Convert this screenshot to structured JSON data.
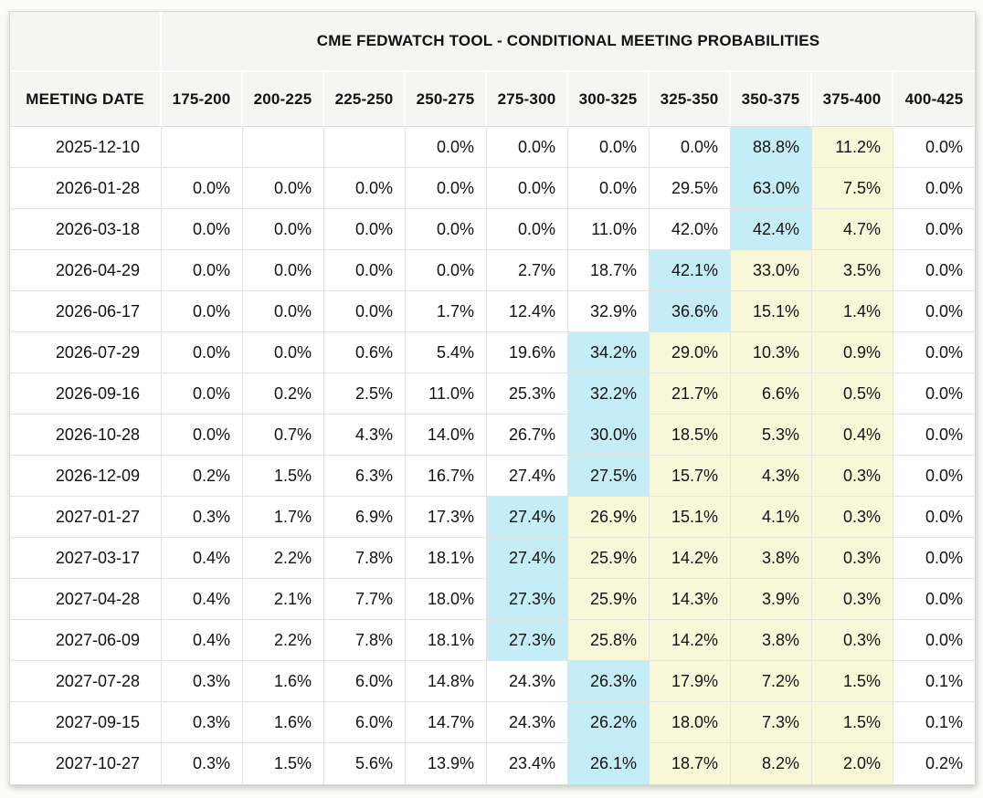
{
  "page": {
    "background": "#fbfbf7"
  },
  "table": {
    "title": "CME FEDWATCH TOOL - CONDITIONAL MEETING PROBABILITIES",
    "date_column_header": "MEETING DATE",
    "rate_bin_headers": [
      "175-200",
      "200-225",
      "225-250",
      "250-275",
      "275-300",
      "300-325",
      "325-350",
      "350-375",
      "375-400",
      "400-425"
    ],
    "highlight_colors": {
      "cyan": "#c5edf8",
      "yellow": "#f8f8d9"
    },
    "rows": [
      {
        "meeting_date": "2025-12-10",
        "values": [
          "",
          "",
          "",
          "0.0%",
          "0.0%",
          "0.0%",
          "0.0%",
          "88.8%",
          "11.2%",
          "0.0%"
        ],
        "highlights": [
          "",
          "",
          "",
          "",
          "",
          "",
          "",
          "cyan",
          "yellow",
          ""
        ]
      },
      {
        "meeting_date": "2026-01-28",
        "values": [
          "0.0%",
          "0.0%",
          "0.0%",
          "0.0%",
          "0.0%",
          "0.0%",
          "29.5%",
          "63.0%",
          "7.5%",
          "0.0%"
        ],
        "highlights": [
          "",
          "",
          "",
          "",
          "",
          "",
          "",
          "cyan",
          "yellow",
          ""
        ]
      },
      {
        "meeting_date": "2026-03-18",
        "values": [
          "0.0%",
          "0.0%",
          "0.0%",
          "0.0%",
          "0.0%",
          "11.0%",
          "42.0%",
          "42.4%",
          "4.7%",
          "0.0%"
        ],
        "highlights": [
          "",
          "",
          "",
          "",
          "",
          "",
          "",
          "cyan",
          "yellow",
          ""
        ]
      },
      {
        "meeting_date": "2026-04-29",
        "values": [
          "0.0%",
          "0.0%",
          "0.0%",
          "0.0%",
          "2.7%",
          "18.7%",
          "42.1%",
          "33.0%",
          "3.5%",
          "0.0%"
        ],
        "highlights": [
          "",
          "",
          "",
          "",
          "",
          "",
          "cyan",
          "yellow",
          "yellow",
          ""
        ]
      },
      {
        "meeting_date": "2026-06-17",
        "values": [
          "0.0%",
          "0.0%",
          "0.0%",
          "1.7%",
          "12.4%",
          "32.9%",
          "36.6%",
          "15.1%",
          "1.4%",
          "0.0%"
        ],
        "highlights": [
          "",
          "",
          "",
          "",
          "",
          "",
          "cyan",
          "yellow",
          "yellow",
          ""
        ]
      },
      {
        "meeting_date": "2026-07-29",
        "values": [
          "0.0%",
          "0.0%",
          "0.6%",
          "5.4%",
          "19.6%",
          "34.2%",
          "29.0%",
          "10.3%",
          "0.9%",
          "0.0%"
        ],
        "highlights": [
          "",
          "",
          "",
          "",
          "",
          "cyan",
          "yellow",
          "yellow",
          "yellow",
          ""
        ]
      },
      {
        "meeting_date": "2026-09-16",
        "values": [
          "0.0%",
          "0.2%",
          "2.5%",
          "11.0%",
          "25.3%",
          "32.2%",
          "21.7%",
          "6.6%",
          "0.5%",
          "0.0%"
        ],
        "highlights": [
          "",
          "",
          "",
          "",
          "",
          "cyan",
          "yellow",
          "yellow",
          "yellow",
          ""
        ]
      },
      {
        "meeting_date": "2026-10-28",
        "values": [
          "0.0%",
          "0.7%",
          "4.3%",
          "14.0%",
          "26.7%",
          "30.0%",
          "18.5%",
          "5.3%",
          "0.4%",
          "0.0%"
        ],
        "highlights": [
          "",
          "",
          "",
          "",
          "",
          "cyan",
          "yellow",
          "yellow",
          "yellow",
          ""
        ]
      },
      {
        "meeting_date": "2026-12-09",
        "values": [
          "0.2%",
          "1.5%",
          "6.3%",
          "16.7%",
          "27.4%",
          "27.5%",
          "15.7%",
          "4.3%",
          "0.3%",
          "0.0%"
        ],
        "highlights": [
          "",
          "",
          "",
          "",
          "",
          "cyan",
          "yellow",
          "yellow",
          "yellow",
          ""
        ]
      },
      {
        "meeting_date": "2027-01-27",
        "values": [
          "0.3%",
          "1.7%",
          "6.9%",
          "17.3%",
          "27.4%",
          "26.9%",
          "15.1%",
          "4.1%",
          "0.3%",
          "0.0%"
        ],
        "highlights": [
          "",
          "",
          "",
          "",
          "cyan",
          "yellow",
          "yellow",
          "yellow",
          "yellow",
          ""
        ]
      },
      {
        "meeting_date": "2027-03-17",
        "values": [
          "0.4%",
          "2.2%",
          "7.8%",
          "18.1%",
          "27.4%",
          "25.9%",
          "14.2%",
          "3.8%",
          "0.3%",
          "0.0%"
        ],
        "highlights": [
          "",
          "",
          "",
          "",
          "cyan",
          "yellow",
          "yellow",
          "yellow",
          "yellow",
          ""
        ]
      },
      {
        "meeting_date": "2027-04-28",
        "values": [
          "0.4%",
          "2.1%",
          "7.7%",
          "18.0%",
          "27.3%",
          "25.9%",
          "14.3%",
          "3.9%",
          "0.3%",
          "0.0%"
        ],
        "highlights": [
          "",
          "",
          "",
          "",
          "cyan",
          "yellow",
          "yellow",
          "yellow",
          "yellow",
          ""
        ]
      },
      {
        "meeting_date": "2027-06-09",
        "values": [
          "0.4%",
          "2.2%",
          "7.8%",
          "18.1%",
          "27.3%",
          "25.8%",
          "14.2%",
          "3.8%",
          "0.3%",
          "0.0%"
        ],
        "highlights": [
          "",
          "",
          "",
          "",
          "cyan",
          "yellow",
          "yellow",
          "yellow",
          "yellow",
          ""
        ]
      },
      {
        "meeting_date": "2027-07-28",
        "values": [
          "0.3%",
          "1.6%",
          "6.0%",
          "14.8%",
          "24.3%",
          "26.3%",
          "17.9%",
          "7.2%",
          "1.5%",
          "0.1%"
        ],
        "highlights": [
          "",
          "",
          "",
          "",
          "",
          "cyan",
          "yellow",
          "yellow",
          "yellow",
          ""
        ]
      },
      {
        "meeting_date": "2027-09-15",
        "values": [
          "0.3%",
          "1.6%",
          "6.0%",
          "14.7%",
          "24.3%",
          "26.2%",
          "18.0%",
          "7.3%",
          "1.5%",
          "0.1%"
        ],
        "highlights": [
          "",
          "",
          "",
          "",
          "",
          "cyan",
          "yellow",
          "yellow",
          "yellow",
          ""
        ]
      },
      {
        "meeting_date": "2027-10-27",
        "values": [
          "0.3%",
          "1.5%",
          "5.6%",
          "13.9%",
          "23.4%",
          "26.1%",
          "18.7%",
          "8.2%",
          "2.0%",
          "0.2%"
        ],
        "highlights": [
          "",
          "",
          "",
          "",
          "",
          "cyan",
          "yellow",
          "yellow",
          "yellow",
          ""
        ]
      }
    ]
  }
}
